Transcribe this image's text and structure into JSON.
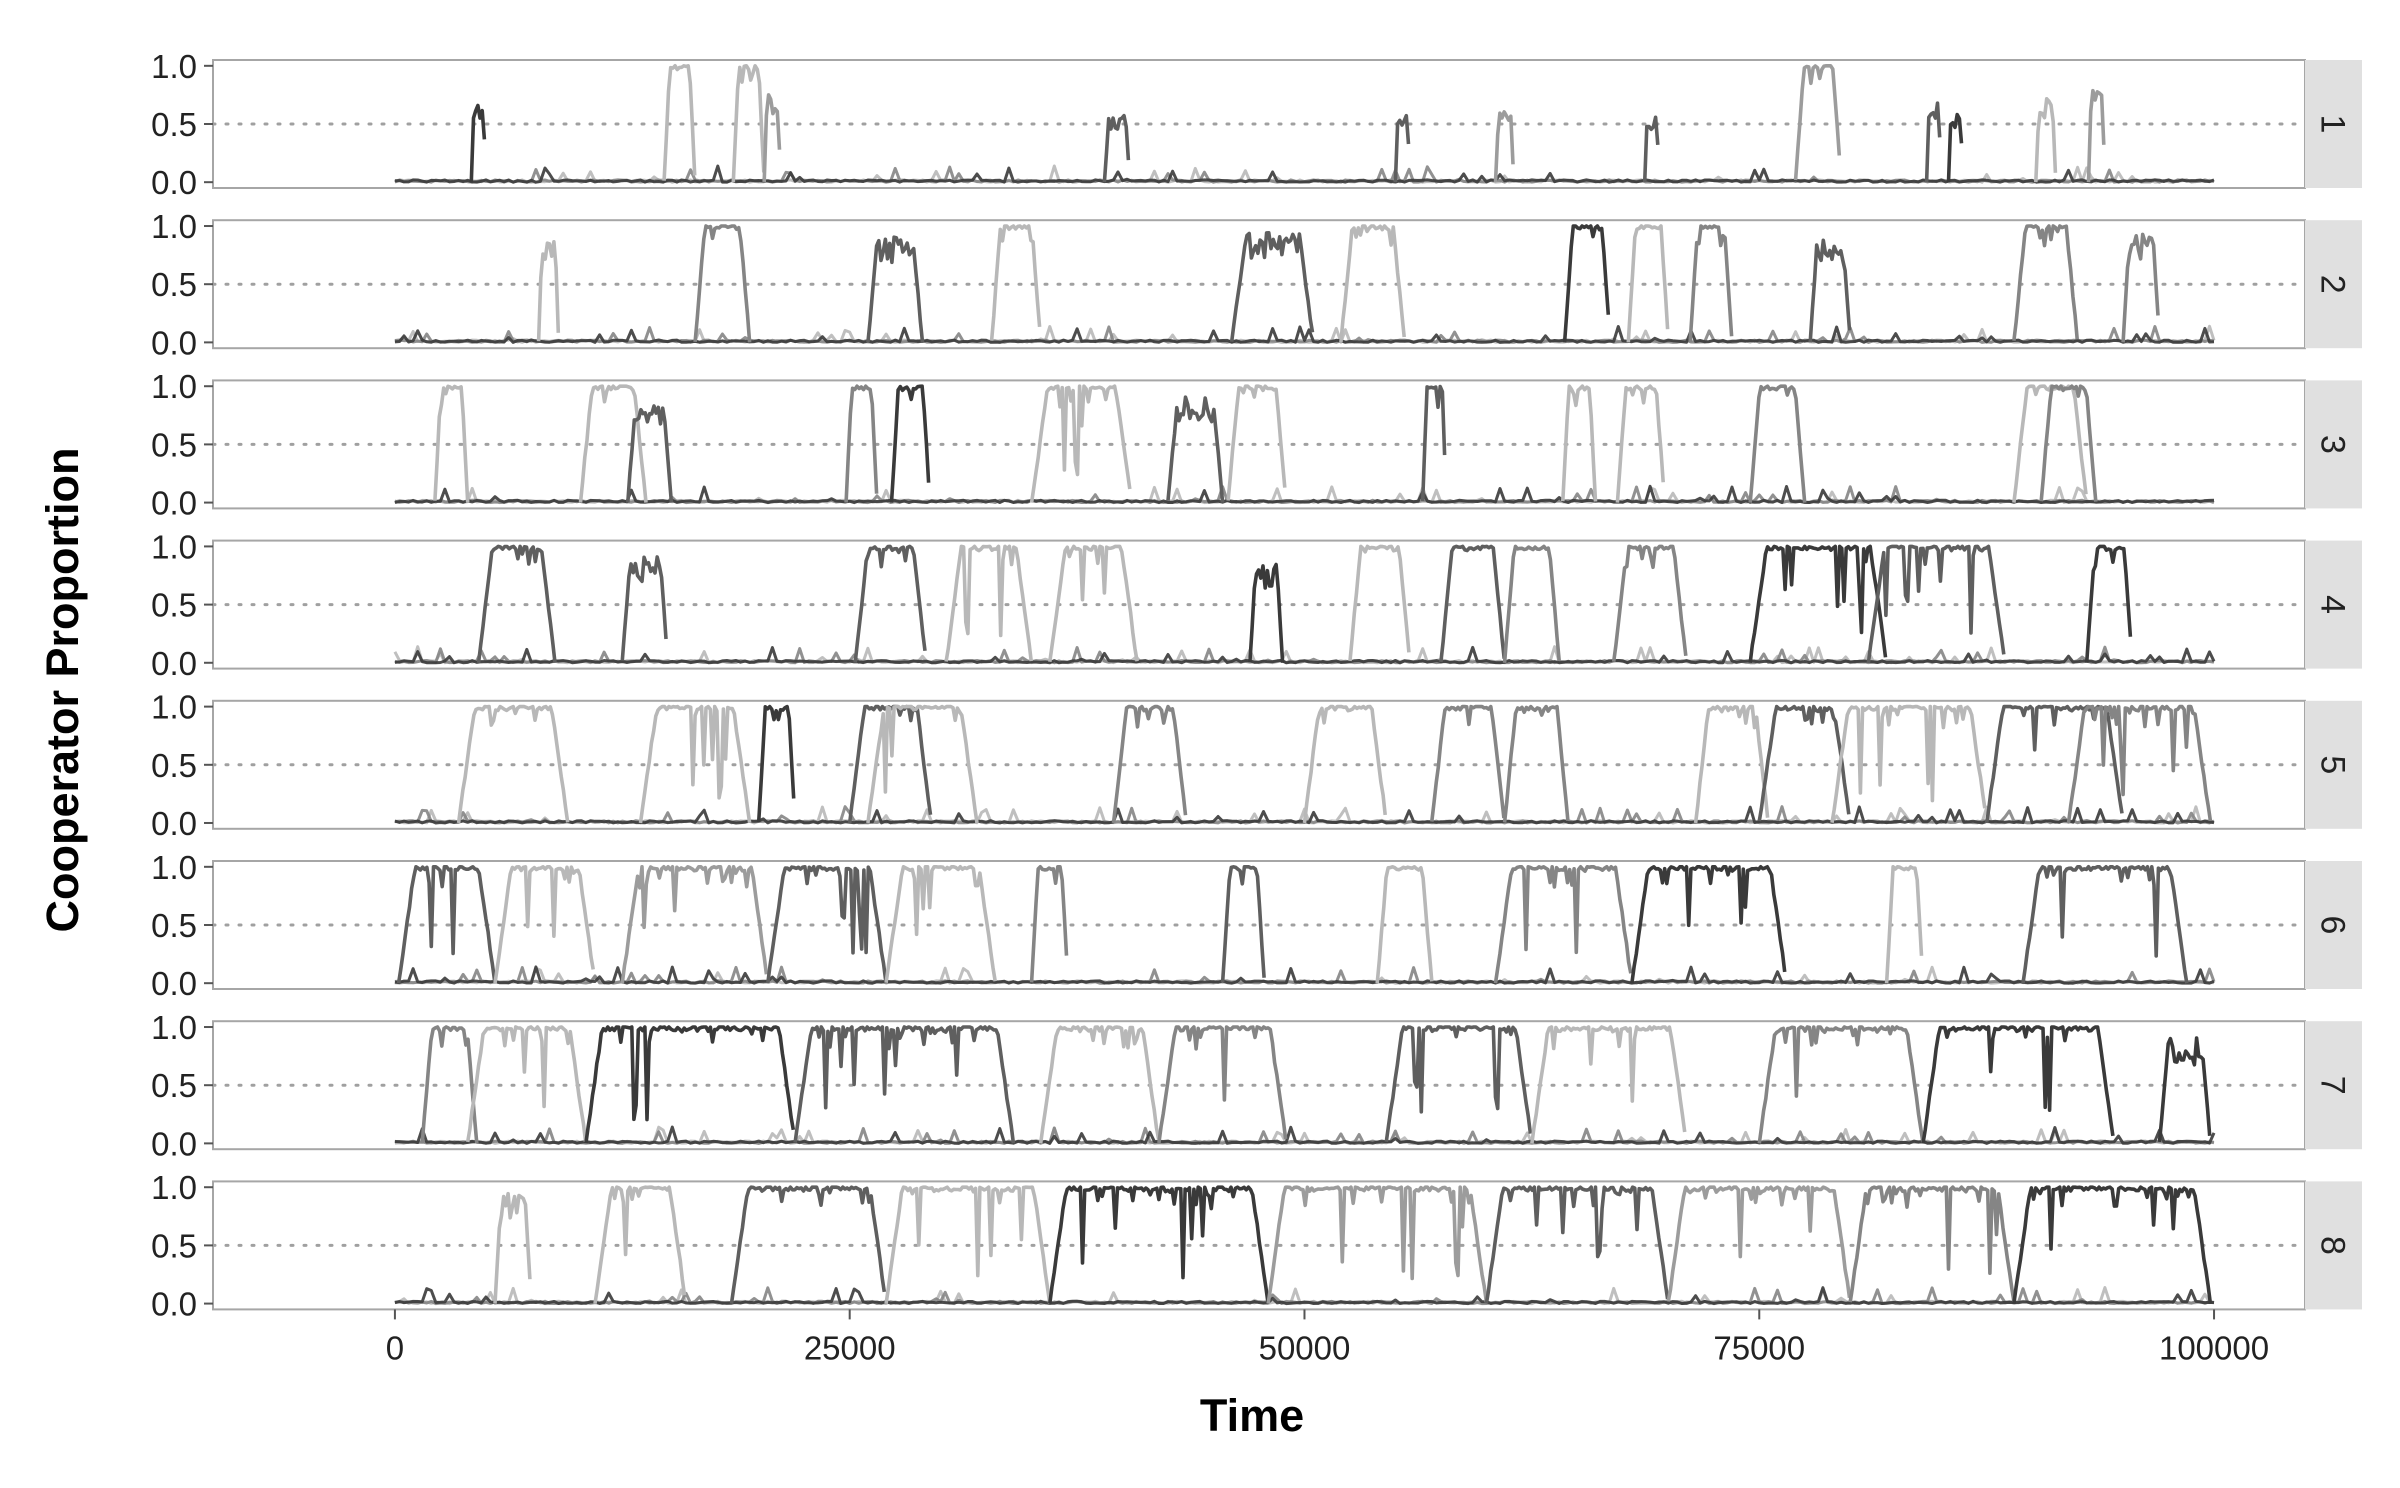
{
  "chart_data": {
    "type": "line",
    "xlabel": "Time",
    "ylabel": "Cooperator Proportion",
    "xlim": [
      -10000,
      105000
    ],
    "ylim": [
      -0.05,
      1.05
    ],
    "x_ticks": [
      0,
      25000,
      50000,
      75000,
      100000
    ],
    "x_tick_labels": [
      "0",
      "25000",
      "50000",
      "75000",
      "100000"
    ],
    "y_ticks": [
      0.0,
      0.5,
      1.0
    ],
    "y_tick_labels": [
      "0.0",
      "0.5",
      "1.0"
    ],
    "reference_line": 0.5,
    "legend": "none",
    "grid": false,
    "colors": {
      "facet_strip": "#e0e0e0",
      "panel_border": "#a6a6a6",
      "reference_line": "#a0a0a0",
      "series_shades": [
        "#3a3a3a",
        "#5f5f5f",
        "#858585",
        "#9c9c9c",
        "#b8b8b8"
      ]
    },
    "facets": [
      {
        "label": "1",
        "episodes": [
          {
            "start": 4200,
            "end": 5000,
            "peak": 0.68,
            "shade": 0
          },
          {
            "start": 14800,
            "end": 16500,
            "peak": 1.0,
            "shade": 4
          },
          {
            "start": 18600,
            "end": 20300,
            "peak": 1.0,
            "shade": 4
          },
          {
            "start": 20300,
            "end": 21200,
            "peak": 0.78,
            "shade": 3
          },
          {
            "start": 39000,
            "end": 40400,
            "peak": 0.58,
            "shade": 1
          },
          {
            "start": 55000,
            "end": 55800,
            "peak": 0.6,
            "shade": 1
          },
          {
            "start": 60500,
            "end": 61500,
            "peak": 0.62,
            "shade": 3
          },
          {
            "start": 68700,
            "end": 69500,
            "peak": 0.58,
            "shade": 1
          },
          {
            "start": 77000,
            "end": 79500,
            "peak": 1.0,
            "shade": 3
          },
          {
            "start": 84200,
            "end": 85000,
            "peak": 0.68,
            "shade": 1
          },
          {
            "start": 85400,
            "end": 86200,
            "peak": 0.6,
            "shade": 0
          },
          {
            "start": 90200,
            "end": 91300,
            "peak": 0.72,
            "shade": 4
          },
          {
            "start": 93100,
            "end": 94000,
            "peak": 0.82,
            "shade": 3
          }
        ]
      },
      {
        "label": "2",
        "episodes": [
          {
            "start": 7900,
            "end": 9000,
            "peak": 0.9,
            "shade": 4
          },
          {
            "start": 16500,
            "end": 19500,
            "peak": 1.0,
            "shade": 2
          },
          {
            "start": 26000,
            "end": 29000,
            "peak": 0.92,
            "shade": 1
          },
          {
            "start": 32800,
            "end": 35500,
            "peak": 1.0,
            "shade": 4
          },
          {
            "start": 46000,
            "end": 50500,
            "peak": 0.95,
            "shade": 1
          },
          {
            "start": 52000,
            "end": 55500,
            "peak": 1.0,
            "shade": 4
          },
          {
            "start": 64300,
            "end": 66800,
            "peak": 1.0,
            "shade": 0
          },
          {
            "start": 67800,
            "end": 70000,
            "peak": 1.0,
            "shade": 4
          },
          {
            "start": 71200,
            "end": 73500,
            "peak": 1.0,
            "shade": 2
          },
          {
            "start": 77800,
            "end": 80000,
            "peak": 0.9,
            "shade": 1
          },
          {
            "start": 89000,
            "end": 92500,
            "peak": 1.0,
            "shade": 2
          },
          {
            "start": 95000,
            "end": 97000,
            "peak": 0.95,
            "shade": 2
          }
        ]
      },
      {
        "label": "3",
        "episodes": [
          {
            "start": 2200,
            "end": 4000,
            "peak": 1.0,
            "shade": 4
          },
          {
            "start": 10200,
            "end": 13800,
            "peak": 1.0,
            "shade": 4
          },
          {
            "start": 12800,
            "end": 15200,
            "peak": 0.85,
            "shade": 1
          },
          {
            "start": 24800,
            "end": 26500,
            "peak": 1.0,
            "shade": 2
          },
          {
            "start": 27300,
            "end": 29400,
            "peak": 1.0,
            "shade": 0
          },
          {
            "start": 35000,
            "end": 40500,
            "peak": 1.0,
            "shade": 4
          },
          {
            "start": 42500,
            "end": 45500,
            "peak": 0.92,
            "shade": 1
          },
          {
            "start": 45800,
            "end": 49000,
            "peak": 1.0,
            "shade": 4
          },
          {
            "start": 56500,
            "end": 57800,
            "peak": 1.0,
            "shade": 1
          },
          {
            "start": 64200,
            "end": 66000,
            "peak": 1.0,
            "shade": 4
          },
          {
            "start": 67200,
            "end": 69800,
            "peak": 1.0,
            "shade": 4
          },
          {
            "start": 74500,
            "end": 77500,
            "peak": 1.0,
            "shade": 2
          },
          {
            "start": 89000,
            "end": 93000,
            "peak": 1.0,
            "shade": 4
          },
          {
            "start": 90500,
            "end": 93500,
            "peak": 1.0,
            "shade": 2
          }
        ]
      },
      {
        "label": "4",
        "episodes": [
          {
            "start": 4600,
            "end": 8800,
            "peak": 1.0,
            "shade": 1
          },
          {
            "start": 12500,
            "end": 15000,
            "peak": 0.95,
            "shade": 1
          },
          {
            "start": 25300,
            "end": 29200,
            "peak": 1.0,
            "shade": 1
          },
          {
            "start": 30300,
            "end": 35000,
            "peak": 1.0,
            "shade": 4
          },
          {
            "start": 36000,
            "end": 40800,
            "peak": 1.0,
            "shade": 4
          },
          {
            "start": 47000,
            "end": 48800,
            "peak": 0.85,
            "shade": 0
          },
          {
            "start": 52500,
            "end": 55800,
            "peak": 1.0,
            "shade": 4
          },
          {
            "start": 57500,
            "end": 61000,
            "peak": 1.0,
            "shade": 1
          },
          {
            "start": 61000,
            "end": 64000,
            "peak": 1.0,
            "shade": 2
          },
          {
            "start": 67000,
            "end": 71000,
            "peak": 1.0,
            "shade": 2
          },
          {
            "start": 74500,
            "end": 82000,
            "peak": 1.0,
            "shade": 0
          },
          {
            "start": 81000,
            "end": 88500,
            "peak": 1.0,
            "shade": 1
          },
          {
            "start": 93000,
            "end": 95500,
            "peak": 1.0,
            "shade": 0
          }
        ]
      },
      {
        "label": "5",
        "episodes": [
          {
            "start": 3500,
            "end": 9500,
            "peak": 1.0,
            "shade": 4
          },
          {
            "start": 13500,
            "end": 19500,
            "peak": 1.0,
            "shade": 4
          },
          {
            "start": 20000,
            "end": 22000,
            "peak": 1.0,
            "shade": 0
          },
          {
            "start": 25000,
            "end": 29500,
            "peak": 1.0,
            "shade": 1
          },
          {
            "start": 26000,
            "end": 32000,
            "peak": 1.0,
            "shade": 4
          },
          {
            "start": 39500,
            "end": 43500,
            "peak": 1.0,
            "shade": 2
          },
          {
            "start": 50000,
            "end": 54500,
            "peak": 1.0,
            "shade": 4
          },
          {
            "start": 57000,
            "end": 61000,
            "peak": 1.0,
            "shade": 2
          },
          {
            "start": 61000,
            "end": 64500,
            "peak": 1.0,
            "shade": 2
          },
          {
            "start": 71500,
            "end": 75500,
            "peak": 1.0,
            "shade": 4
          },
          {
            "start": 75000,
            "end": 80000,
            "peak": 1.0,
            "shade": 1
          },
          {
            "start": 79000,
            "end": 87500,
            "peak": 1.0,
            "shade": 4
          },
          {
            "start": 87500,
            "end": 95000,
            "peak": 1.0,
            "shade": 1
          },
          {
            "start": 92000,
            "end": 99800,
            "peak": 1.0,
            "shade": 2
          }
        ]
      },
      {
        "label": "6",
        "episodes": [
          {
            "start": 200,
            "end": 5500,
            "peak": 1.0,
            "shade": 1
          },
          {
            "start": 5500,
            "end": 11000,
            "peak": 1.0,
            "shade": 4
          },
          {
            "start": 12500,
            "end": 20500,
            "peak": 1.0,
            "shade": 3
          },
          {
            "start": 20500,
            "end": 27000,
            "peak": 1.0,
            "shade": 1
          },
          {
            "start": 27000,
            "end": 33000,
            "peak": 1.0,
            "shade": 4
          },
          {
            "start": 35000,
            "end": 37000,
            "peak": 1.0,
            "shade": 2
          },
          {
            "start": 45500,
            "end": 47800,
            "peak": 1.0,
            "shade": 1
          },
          {
            "start": 54000,
            "end": 57000,
            "peak": 1.0,
            "shade": 4
          },
          {
            "start": 60500,
            "end": 68000,
            "peak": 1.0,
            "shade": 2
          },
          {
            "start": 68000,
            "end": 76500,
            "peak": 1.0,
            "shade": 0
          },
          {
            "start": 82000,
            "end": 84000,
            "peak": 1.0,
            "shade": 4
          },
          {
            "start": 89500,
            "end": 98500,
            "peak": 1.0,
            "shade": 1
          }
        ]
      },
      {
        "label": "7",
        "episodes": [
          {
            "start": 1500,
            "end": 4500,
            "peak": 1.0,
            "shade": 2
          },
          {
            "start": 4000,
            "end": 10500,
            "peak": 1.0,
            "shade": 4
          },
          {
            "start": 10500,
            "end": 22000,
            "peak": 1.0,
            "shade": 0
          },
          {
            "start": 22000,
            "end": 34000,
            "peak": 1.0,
            "shade": 1
          },
          {
            "start": 35500,
            "end": 42000,
            "peak": 1.0,
            "shade": 4
          },
          {
            "start": 42000,
            "end": 49000,
            "peak": 1.0,
            "shade": 2
          },
          {
            "start": 54500,
            "end": 62500,
            "peak": 1.0,
            "shade": 1
          },
          {
            "start": 62500,
            "end": 71000,
            "peak": 1.0,
            "shade": 4
          },
          {
            "start": 75000,
            "end": 84000,
            "peak": 1.0,
            "shade": 2
          },
          {
            "start": 84000,
            "end": 94500,
            "peak": 1.0,
            "shade": 0
          },
          {
            "start": 97000,
            "end": 99800,
            "peak": 0.9,
            "shade": 0
          }
        ]
      },
      {
        "label": "8",
        "episodes": [
          {
            "start": 5500,
            "end": 7500,
            "peak": 0.95,
            "shade": 4
          },
          {
            "start": 11000,
            "end": 16000,
            "peak": 1.0,
            "shade": 4
          },
          {
            "start": 18500,
            "end": 27000,
            "peak": 1.0,
            "shade": 1
          },
          {
            "start": 27000,
            "end": 36000,
            "peak": 1.0,
            "shade": 4
          },
          {
            "start": 36000,
            "end": 48000,
            "peak": 1.0,
            "shade": 0
          },
          {
            "start": 48000,
            "end": 60000,
            "peak": 1.0,
            "shade": 3
          },
          {
            "start": 60000,
            "end": 70000,
            "peak": 1.0,
            "shade": 1
          },
          {
            "start": 70000,
            "end": 80000,
            "peak": 1.0,
            "shade": 3
          },
          {
            "start": 80000,
            "end": 89000,
            "peak": 1.0,
            "shade": 2
          },
          {
            "start": 89000,
            "end": 99800,
            "peak": 1.0,
            "shade": 0
          }
        ]
      }
    ]
  }
}
